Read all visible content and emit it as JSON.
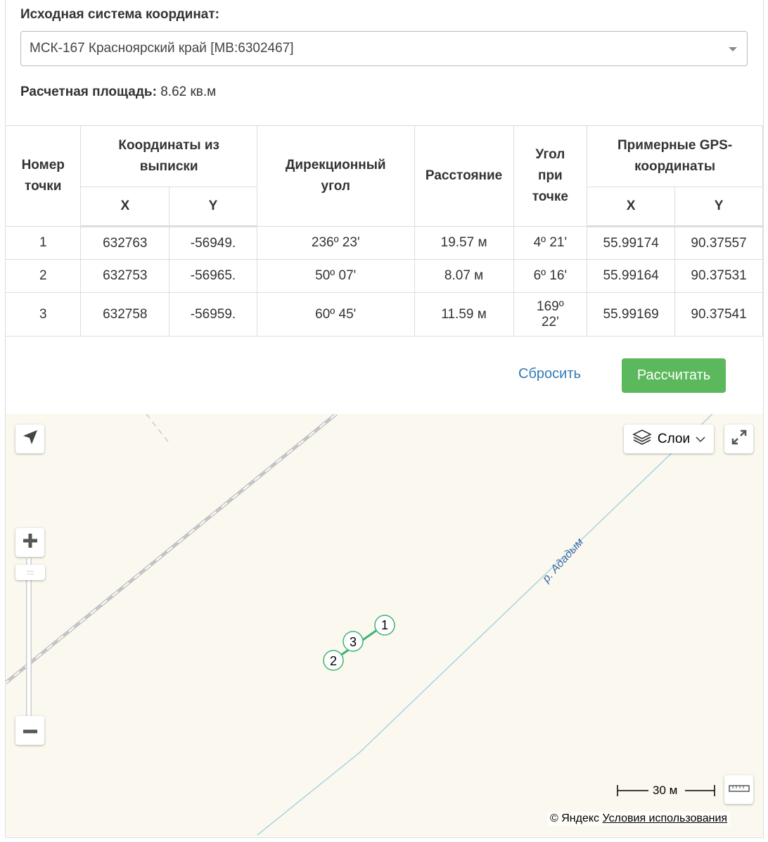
{
  "form": {
    "crs_label": "Исходная система координат:",
    "crs_value": "МСК-167 Красноярский край [МВ:6302467]",
    "area_label": "Расчетная площадь:",
    "area_value": "8.62 кв.м"
  },
  "table": {
    "headers": {
      "point": "Номер точки",
      "coords": "Координаты из выписки",
      "angle": "Дирекционный угол",
      "distance": "Расстояние",
      "corner": "Угол при точке",
      "gps": "Примерные GPS-координаты",
      "x": "X",
      "y": "Y"
    },
    "rows": [
      {
        "n": "1",
        "x": "632763",
        "y": "-56949.",
        "dir": "236º 23'",
        "dist": "19.57 м",
        "corner": "4º 21'",
        "gx": "55.99174",
        "gy": "90.37557"
      },
      {
        "n": "2",
        "x": "632753",
        "y": "-56965.",
        "dir": "50º 07'",
        "dist": "8.07 м",
        "corner": "6º 16'",
        "gx": "55.99164",
        "gy": "90.37531"
      },
      {
        "n": "3",
        "x": "632758",
        "y": "-56959.",
        "dir": "60º 45'",
        "dist": "11.59 м",
        "corner": "169º 22'",
        "gx": "55.99169",
        "gy": "90.37541"
      }
    ]
  },
  "actions": {
    "reset": "Сбросить",
    "calculate": "Рассчитать"
  },
  "map": {
    "layers": "Слои",
    "river": "р. Ададым",
    "markers": [
      "1",
      "2",
      "3"
    ],
    "scale": "30 м",
    "copyright": "© Яндекс",
    "terms": "Условия использования",
    "marker_color": "#3cb371",
    "river_color": "#a8d4e0"
  }
}
